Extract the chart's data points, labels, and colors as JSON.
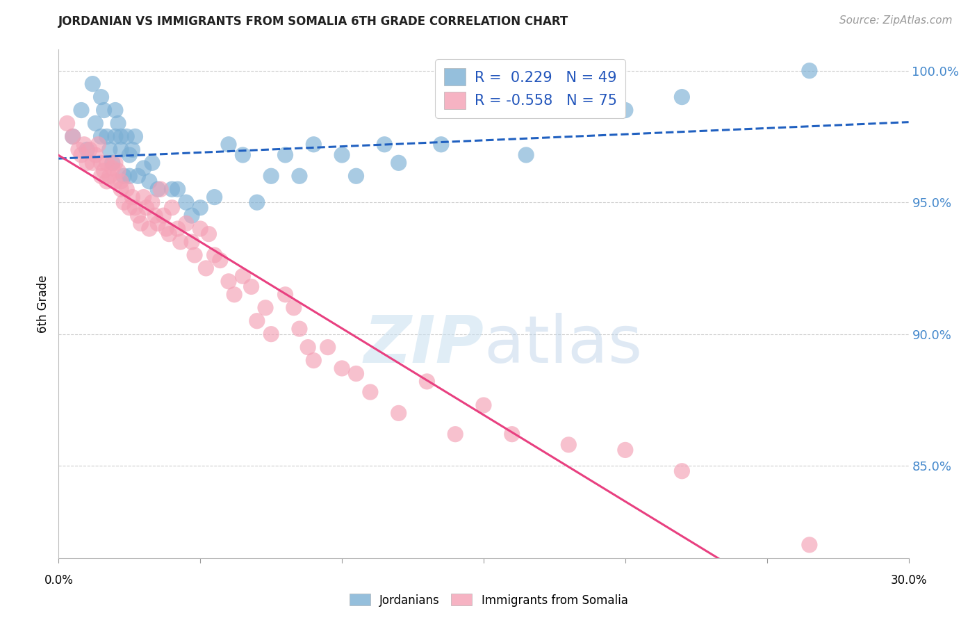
{
  "title": "JORDANIAN VS IMMIGRANTS FROM SOMALIA 6TH GRADE CORRELATION CHART",
  "source": "Source: ZipAtlas.com",
  "ylabel": "6th Grade",
  "xlim": [
    0.0,
    0.3
  ],
  "ylim": [
    0.815,
    1.008
  ],
  "yticks": [
    0.85,
    0.9,
    0.95,
    1.0
  ],
  "ytick_labels": [
    "85.0%",
    "90.0%",
    "95.0%",
    "100.0%"
  ],
  "legend_R_jordan": "0.229",
  "legend_N_jordan": "49",
  "legend_R_somalia": "-0.558",
  "legend_N_somalia": "75",
  "jordan_color": "#7bafd4",
  "somalia_color": "#f4a0b5",
  "jordan_line_color": "#2060c0",
  "somalia_line_color": "#e84080",
  "watermark_zip": "ZIP",
  "watermark_atlas": "atlas",
  "jordan_x": [
    0.005,
    0.008,
    0.01,
    0.012,
    0.013,
    0.015,
    0.015,
    0.016,
    0.017,
    0.018,
    0.019,
    0.02,
    0.02,
    0.021,
    0.022,
    0.022,
    0.023,
    0.024,
    0.025,
    0.025,
    0.026,
    0.027,
    0.028,
    0.03,
    0.032,
    0.033,
    0.035,
    0.04,
    0.042,
    0.045,
    0.047,
    0.05,
    0.055,
    0.06,
    0.065,
    0.07,
    0.075,
    0.08,
    0.085,
    0.09,
    0.1,
    0.105,
    0.115,
    0.12,
    0.135,
    0.165,
    0.2,
    0.22,
    0.265
  ],
  "jordan_y": [
    0.975,
    0.985,
    0.97,
    0.995,
    0.98,
    0.975,
    0.99,
    0.985,
    0.975,
    0.97,
    0.965,
    0.975,
    0.985,
    0.98,
    0.975,
    0.97,
    0.96,
    0.975,
    0.968,
    0.96,
    0.97,
    0.975,
    0.96,
    0.963,
    0.958,
    0.965,
    0.955,
    0.955,
    0.955,
    0.95,
    0.945,
    0.948,
    0.952,
    0.972,
    0.968,
    0.95,
    0.96,
    0.968,
    0.96,
    0.972,
    0.968,
    0.96,
    0.972,
    0.965,
    0.972,
    0.968,
    0.985,
    0.99,
    1.0
  ],
  "somalia_x": [
    0.003,
    0.005,
    0.007,
    0.008,
    0.009,
    0.01,
    0.011,
    0.012,
    0.013,
    0.014,
    0.015,
    0.015,
    0.016,
    0.017,
    0.017,
    0.018,
    0.019,
    0.02,
    0.02,
    0.021,
    0.022,
    0.022,
    0.023,
    0.024,
    0.025,
    0.026,
    0.027,
    0.028,
    0.029,
    0.03,
    0.031,
    0.032,
    0.033,
    0.034,
    0.035,
    0.036,
    0.037,
    0.038,
    0.039,
    0.04,
    0.042,
    0.043,
    0.045,
    0.047,
    0.048,
    0.05,
    0.052,
    0.053,
    0.055,
    0.057,
    0.06,
    0.062,
    0.065,
    0.068,
    0.07,
    0.073,
    0.075,
    0.08,
    0.083,
    0.085,
    0.088,
    0.09,
    0.095,
    0.1,
    0.105,
    0.11,
    0.12,
    0.13,
    0.14,
    0.15,
    0.16,
    0.18,
    0.2,
    0.22,
    0.265
  ],
  "somalia_y": [
    0.98,
    0.975,
    0.97,
    0.968,
    0.972,
    0.965,
    0.97,
    0.965,
    0.968,
    0.972,
    0.96,
    0.965,
    0.962,
    0.958,
    0.965,
    0.96,
    0.963,
    0.958,
    0.965,
    0.962,
    0.958,
    0.955,
    0.95,
    0.955,
    0.948,
    0.952,
    0.948,
    0.945,
    0.942,
    0.952,
    0.948,
    0.94,
    0.95,
    0.945,
    0.942,
    0.955,
    0.945,
    0.94,
    0.938,
    0.948,
    0.94,
    0.935,
    0.942,
    0.935,
    0.93,
    0.94,
    0.925,
    0.938,
    0.93,
    0.928,
    0.92,
    0.915,
    0.922,
    0.918,
    0.905,
    0.91,
    0.9,
    0.915,
    0.91,
    0.902,
    0.895,
    0.89,
    0.895,
    0.887,
    0.885,
    0.878,
    0.87,
    0.882,
    0.862,
    0.873,
    0.862,
    0.858,
    0.856,
    0.848,
    0.82
  ]
}
